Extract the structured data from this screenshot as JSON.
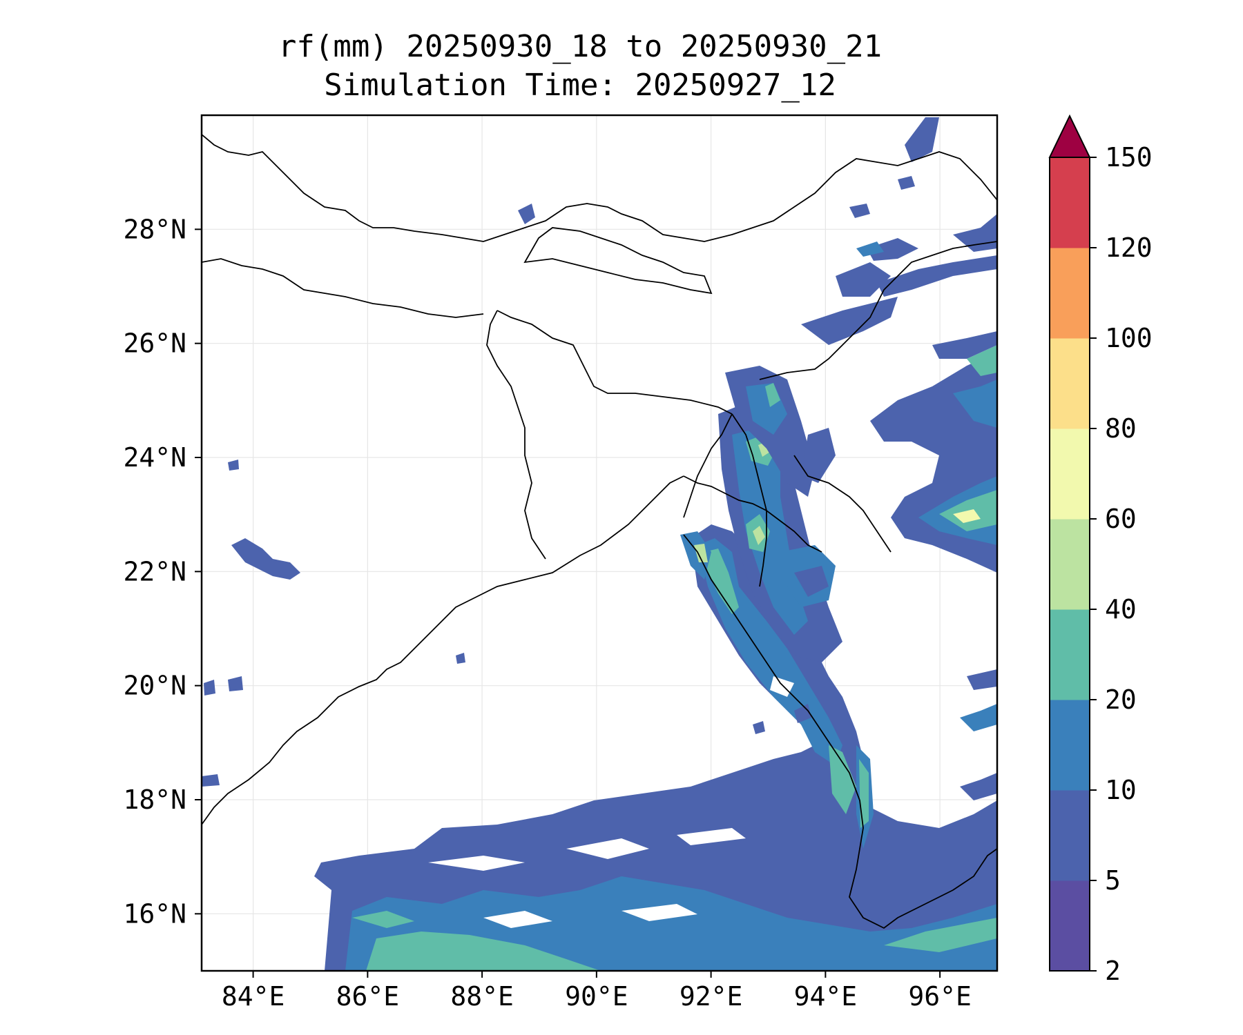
{
  "title_line1": "rf(mm) 20250930_18 to 20250930_21",
  "title_line2": "Simulation Time: 20250927_12",
  "map": {
    "lon_range": [
      83.1,
      97.0
    ],
    "lat_range": [
      15.0,
      30.0
    ],
    "gridlines": true,
    "lon_ticks": [
      {
        "value": 84,
        "label": "84°E"
      },
      {
        "value": 86,
        "label": "86°E"
      },
      {
        "value": 88,
        "label": "88°E"
      },
      {
        "value": 90,
        "label": "90°E"
      },
      {
        "value": 92,
        "label": "92°E"
      },
      {
        "value": 94,
        "label": "94°E"
      },
      {
        "value": 96,
        "label": "96°E"
      }
    ],
    "lat_ticks": [
      {
        "value": 16,
        "label": "16°N"
      },
      {
        "value": 18,
        "label": "18°N"
      },
      {
        "value": 20,
        "label": "20°N"
      },
      {
        "value": 22,
        "label": "22°N"
      },
      {
        "value": 24,
        "label": "24°N"
      },
      {
        "value": 26,
        "label": "26°N"
      },
      {
        "value": 28,
        "label": "28°N"
      }
    ]
  },
  "colorbar": {
    "levels": [
      "2",
      "5",
      "10",
      "20",
      "40",
      "60",
      "80",
      "100",
      "120",
      "150"
    ],
    "colors": [
      "#5b4ea2",
      "#4c63ad",
      "#3a80bb",
      "#60bda8",
      "#bce3a1",
      "#f2f9ae",
      "#fcdf8a",
      "#f99f5a",
      "#d53f4e"
    ],
    "extend_color": "#9e0142"
  }
}
